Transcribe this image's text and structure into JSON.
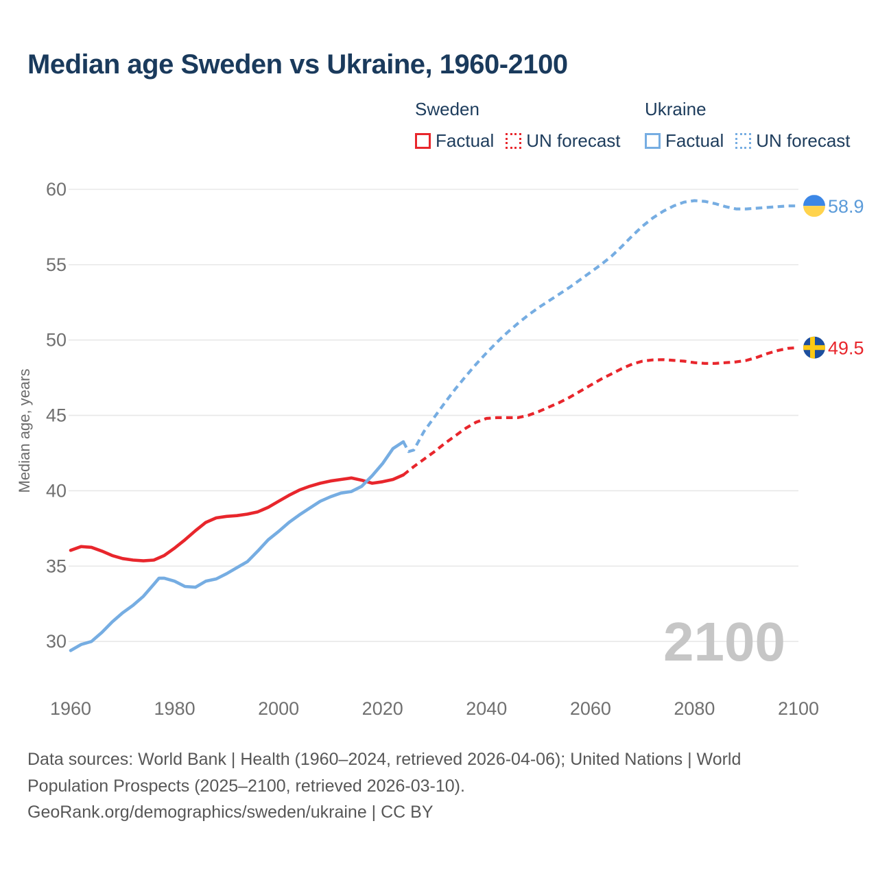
{
  "title": "Median age Sweden vs Ukraine, 1960-2100",
  "legend": {
    "groups": [
      {
        "name": "Sweden",
        "items": [
          {
            "label": "Factual",
            "style": "solid",
            "color": "#E8262C"
          },
          {
            "label": "UN forecast",
            "style": "dotted",
            "color": "#E8262C"
          }
        ]
      },
      {
        "name": "Ukraine",
        "items": [
          {
            "label": "Factual",
            "style": "solid",
            "color": "#76ADE2"
          },
          {
            "label": "UN forecast",
            "style": "dotted",
            "color": "#76ADE2"
          }
        ]
      }
    ]
  },
  "chart_data": {
    "type": "line",
    "title": "Median age Sweden vs Ukraine, 1960-2100",
    "xlabel": "",
    "ylabel": "Median age, years",
    "x_ticks": [
      1960,
      1980,
      2000,
      2020,
      2040,
      2060,
      2080,
      2100
    ],
    "y_ticks": [
      30,
      35,
      40,
      45,
      50,
      55,
      60
    ],
    "xlim": [
      1960,
      2100
    ],
    "ylim": [
      27.5,
      61
    ],
    "grid": "horizontal-only",
    "legend_position": "top-right",
    "watermark": "2100",
    "colors": {
      "sweden": "#E8262C",
      "ukraine": "#76ADE2",
      "ukraine_value_label": "#5B9BD9",
      "sweden_value_label": "#E8262C",
      "gridline": "#E8E8E8",
      "tick_text": "#707070",
      "watermark": "#C6C6C6"
    },
    "series": [
      {
        "name": "Sweden factual",
        "color": "#E8262C",
        "dash": false,
        "points": [
          [
            1960,
            36.05
          ],
          [
            1962,
            36.3
          ],
          [
            1964,
            36.25
          ],
          [
            1966,
            36.0
          ],
          [
            1968,
            35.7
          ],
          [
            1970,
            35.5
          ],
          [
            1972,
            35.4
          ],
          [
            1974,
            35.35
          ],
          [
            1976,
            35.4
          ],
          [
            1978,
            35.7
          ],
          [
            1980,
            36.2
          ],
          [
            1982,
            36.75
          ],
          [
            1984,
            37.35
          ],
          [
            1986,
            37.9
          ],
          [
            1988,
            38.2
          ],
          [
            1990,
            38.3
          ],
          [
            1992,
            38.35
          ],
          [
            1994,
            38.45
          ],
          [
            1996,
            38.6
          ],
          [
            1998,
            38.9
          ],
          [
            2000,
            39.3
          ],
          [
            2002,
            39.7
          ],
          [
            2004,
            40.05
          ],
          [
            2006,
            40.3
          ],
          [
            2008,
            40.5
          ],
          [
            2010,
            40.65
          ],
          [
            2012,
            40.75
          ],
          [
            2014,
            40.85
          ],
          [
            2016,
            40.7
          ],
          [
            2018,
            40.5
          ],
          [
            2020,
            40.6
          ],
          [
            2022,
            40.75
          ],
          [
            2024,
            41.05
          ]
        ]
      },
      {
        "name": "Sweden UN forecast",
        "color": "#E8262C",
        "dash": true,
        "points": [
          [
            2024,
            41.05
          ],
          [
            2026,
            41.6
          ],
          [
            2028,
            42.1
          ],
          [
            2030,
            42.6
          ],
          [
            2032,
            43.15
          ],
          [
            2034,
            43.65
          ],
          [
            2036,
            44.15
          ],
          [
            2038,
            44.55
          ],
          [
            2040,
            44.8
          ],
          [
            2042,
            44.85
          ],
          [
            2044,
            44.85
          ],
          [
            2046,
            44.85
          ],
          [
            2048,
            45.0
          ],
          [
            2050,
            45.25
          ],
          [
            2052,
            45.55
          ],
          [
            2054,
            45.85
          ],
          [
            2056,
            46.2
          ],
          [
            2058,
            46.6
          ],
          [
            2060,
            47.0
          ],
          [
            2062,
            47.4
          ],
          [
            2064,
            47.75
          ],
          [
            2066,
            48.1
          ],
          [
            2068,
            48.4
          ],
          [
            2070,
            48.6
          ],
          [
            2072,
            48.68
          ],
          [
            2074,
            48.7
          ],
          [
            2076,
            48.65
          ],
          [
            2078,
            48.6
          ],
          [
            2080,
            48.5
          ],
          [
            2082,
            48.45
          ],
          [
            2084,
            48.45
          ],
          [
            2086,
            48.5
          ],
          [
            2088,
            48.55
          ],
          [
            2090,
            48.65
          ],
          [
            2092,
            48.85
          ],
          [
            2094,
            49.1
          ],
          [
            2096,
            49.3
          ],
          [
            2098,
            49.45
          ],
          [
            2100,
            49.5
          ]
        ]
      },
      {
        "name": "Ukraine factual",
        "color": "#76ADE2",
        "dash": false,
        "points": [
          [
            1960,
            29.4
          ],
          [
            1962,
            29.8
          ],
          [
            1964,
            30.0
          ],
          [
            1966,
            30.6
          ],
          [
            1968,
            31.3
          ],
          [
            1970,
            31.9
          ],
          [
            1972,
            32.4
          ],
          [
            1974,
            33.0
          ],
          [
            1976,
            33.8
          ],
          [
            1977,
            34.2
          ],
          [
            1978,
            34.2
          ],
          [
            1980,
            34.0
          ],
          [
            1982,
            33.65
          ],
          [
            1984,
            33.6
          ],
          [
            1986,
            34.0
          ],
          [
            1988,
            34.15
          ],
          [
            1990,
            34.5
          ],
          [
            1992,
            34.9
          ],
          [
            1994,
            35.3
          ],
          [
            1996,
            36.0
          ],
          [
            1998,
            36.75
          ],
          [
            2000,
            37.3
          ],
          [
            2002,
            37.9
          ],
          [
            2004,
            38.4
          ],
          [
            2006,
            38.85
          ],
          [
            2008,
            39.3
          ],
          [
            2010,
            39.6
          ],
          [
            2012,
            39.85
          ],
          [
            2014,
            39.95
          ],
          [
            2016,
            40.3
          ],
          [
            2018,
            41.0
          ],
          [
            2020,
            41.8
          ],
          [
            2022,
            42.8
          ],
          [
            2024,
            43.25
          ]
        ]
      },
      {
        "name": "Ukraine UN forecast",
        "color": "#76ADE2",
        "dash": true,
        "points": [
          [
            2024,
            43.25
          ],
          [
            2025,
            42.6
          ],
          [
            2026,
            42.7
          ],
          [
            2028,
            43.95
          ],
          [
            2030,
            44.9
          ],
          [
            2032,
            45.85
          ],
          [
            2034,
            46.75
          ],
          [
            2036,
            47.6
          ],
          [
            2038,
            48.4
          ],
          [
            2040,
            49.15
          ],
          [
            2042,
            49.85
          ],
          [
            2044,
            50.5
          ],
          [
            2046,
            51.1
          ],
          [
            2048,
            51.65
          ],
          [
            2050,
            52.15
          ],
          [
            2052,
            52.6
          ],
          [
            2054,
            53.05
          ],
          [
            2056,
            53.5
          ],
          [
            2058,
            54.0
          ],
          [
            2060,
            54.5
          ],
          [
            2062,
            55.0
          ],
          [
            2064,
            55.55
          ],
          [
            2066,
            56.2
          ],
          [
            2068,
            56.9
          ],
          [
            2070,
            57.55
          ],
          [
            2072,
            58.1
          ],
          [
            2074,
            58.55
          ],
          [
            2076,
            58.9
          ],
          [
            2078,
            59.15
          ],
          [
            2080,
            59.25
          ],
          [
            2082,
            59.2
          ],
          [
            2084,
            59.05
          ],
          [
            2086,
            58.85
          ],
          [
            2088,
            58.7
          ],
          [
            2090,
            58.7
          ],
          [
            2092,
            58.75
          ],
          [
            2094,
            58.8
          ],
          [
            2096,
            58.85
          ],
          [
            2098,
            58.9
          ],
          [
            2100,
            58.9
          ]
        ]
      }
    ],
    "end_markers": [
      {
        "flag": "ukraine",
        "year": 2100,
        "value": 58.9,
        "value_label": "58.9",
        "label_color": "#5B9BD9"
      },
      {
        "flag": "sweden",
        "year": 2100,
        "value": 49.5,
        "value_label": "49.5",
        "label_color": "#E8262C"
      }
    ]
  },
  "footer": {
    "line1": "Data sources: World Bank | Health (1960–2024, retrieved 2026-04-06); United Nations | World Population Prospects (2025–2100, retrieved 2026-03-10).",
    "line2": "GeoRank.org/demographics/sweden/ukraine | CC BY"
  }
}
